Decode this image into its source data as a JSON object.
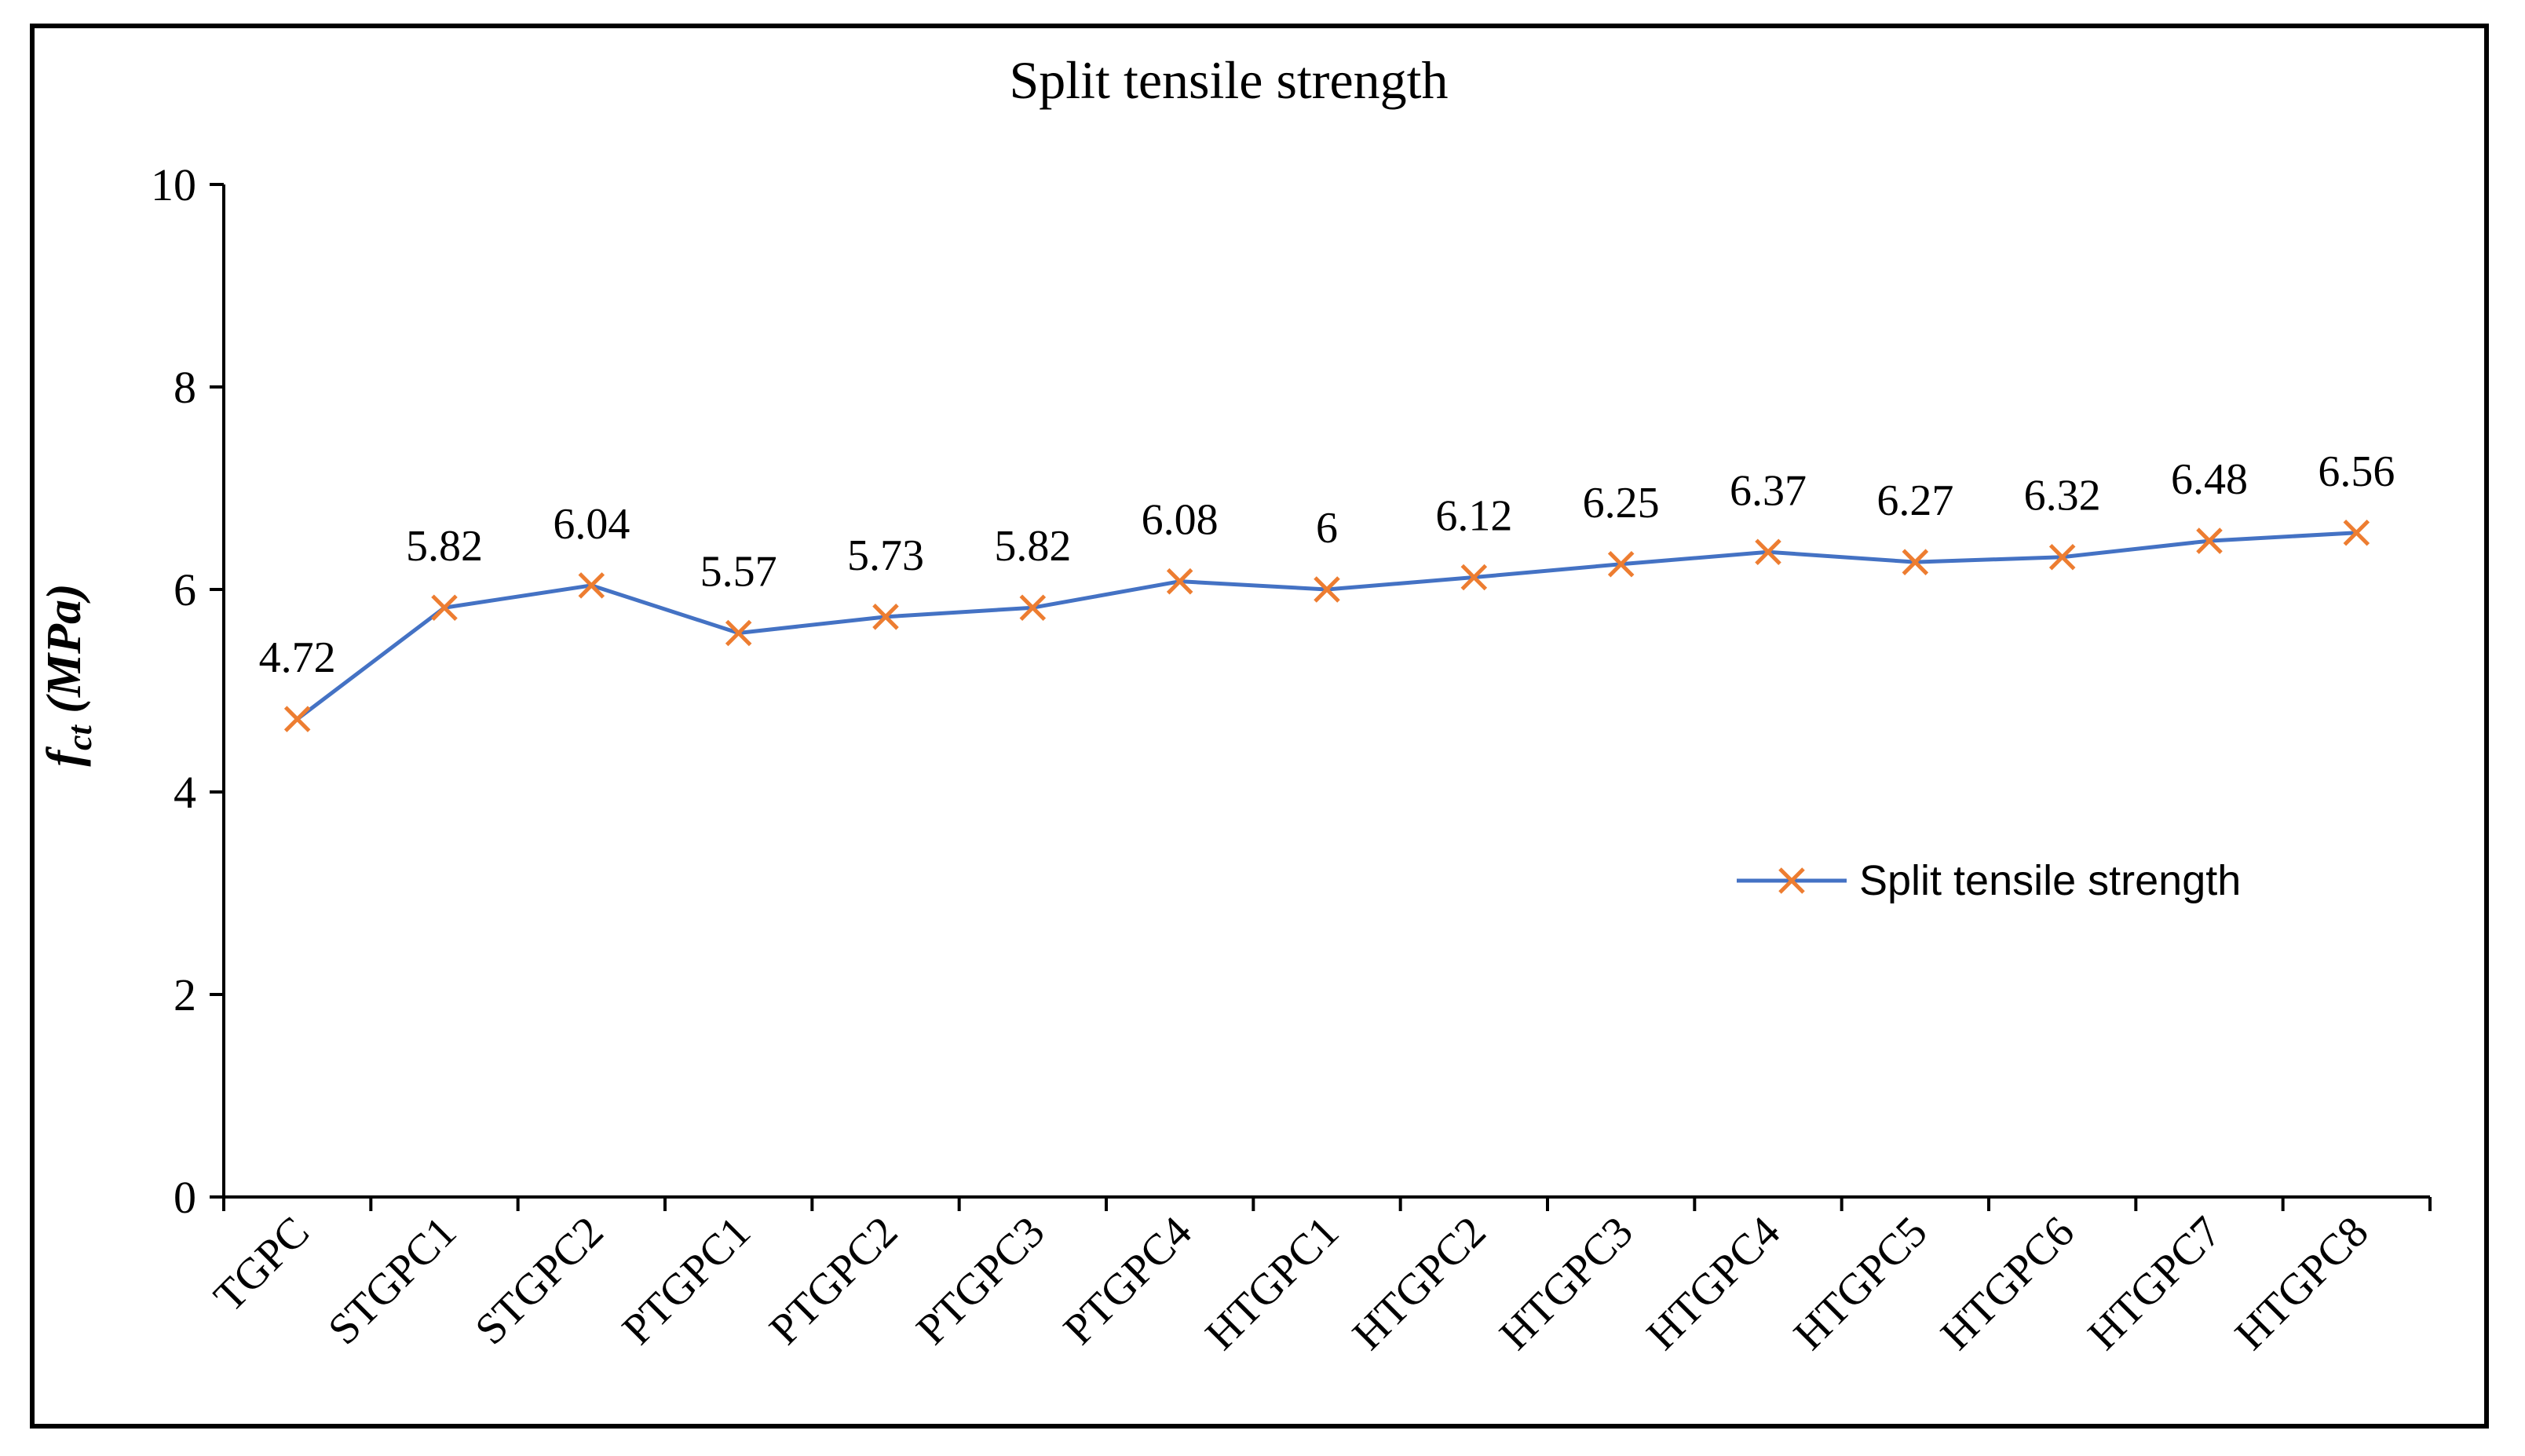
{
  "chart_data": {
    "type": "line",
    "title": "Split tensile strength",
    "xlabel": "",
    "ylabel_main": "f",
    "ylabel_sub": "ct",
    "ylabel_unit": " (MPa)",
    "ylim": [
      0,
      10
    ],
    "yticks": [
      0,
      2,
      4,
      6,
      8,
      10
    ],
    "categories": [
      "TGPC",
      "STGPC1",
      "STGPC2",
      "PTGPC1",
      "PTGPC2",
      "PTGPC3",
      "PTGPC4",
      "HTGPC1",
      "HTGPC2",
      "HTGPC3",
      "HTGPC4",
      "HTGPC5",
      "HTGPC6",
      "HTGPC7",
      "HTGPC8"
    ],
    "series": [
      {
        "name": "Split tensile strength",
        "values": [
          4.72,
          5.82,
          6.04,
          5.57,
          5.73,
          5.82,
          6.08,
          6,
          6.12,
          6.25,
          6.37,
          6.27,
          6.32,
          6.48,
          6.56
        ],
        "labels": [
          "4.72",
          "5.82",
          "6.04",
          "5.57",
          "5.73",
          "5.82",
          "6.08",
          "6",
          "6.12",
          "6.25",
          "6.37",
          "6.27",
          "6.32",
          "6.48",
          "6.56"
        ],
        "line_color": "#4472C4",
        "marker_color": "#ED7D31",
        "marker": "x"
      }
    ],
    "legend": {
      "label": "Split tensile strength",
      "position": "right"
    },
    "grid": false
  }
}
